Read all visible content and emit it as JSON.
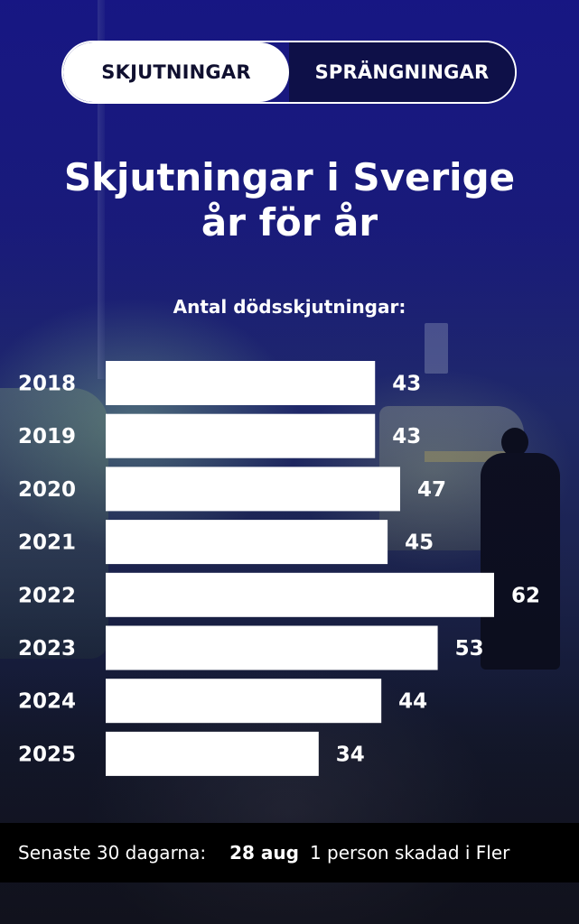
{
  "tabs": [
    {
      "label": "SKJUTNINGAR",
      "active": true
    },
    {
      "label": "SPRÄNGNINGAR",
      "active": false
    }
  ],
  "title_line1": "Skjutningar i Sverige",
  "title_line2": "år för år",
  "chart_data": {
    "type": "bar",
    "orientation": "horizontal",
    "ylabel": "Antal dödsskjutningar:",
    "categories": [
      "2018",
      "2019",
      "2020",
      "2021",
      "2022",
      "2023",
      "2024",
      "2025"
    ],
    "values": [
      43,
      43,
      47,
      45,
      62,
      53,
      44,
      34
    ],
    "data_labels": true,
    "grid": false,
    "xlim": [
      0,
      62
    ],
    "bar_color": "#ffffff"
  },
  "ticker": {
    "label": "Senaste 30 dagarna:",
    "date": "28 aug",
    "text": "1 person skadad i Fler"
  },
  "colors": {
    "tab_active_bg": "#ffffff",
    "tab_inactive_bg": "#0e1048",
    "background": "#1a1c7c",
    "ticker_bg": "#000000"
  }
}
